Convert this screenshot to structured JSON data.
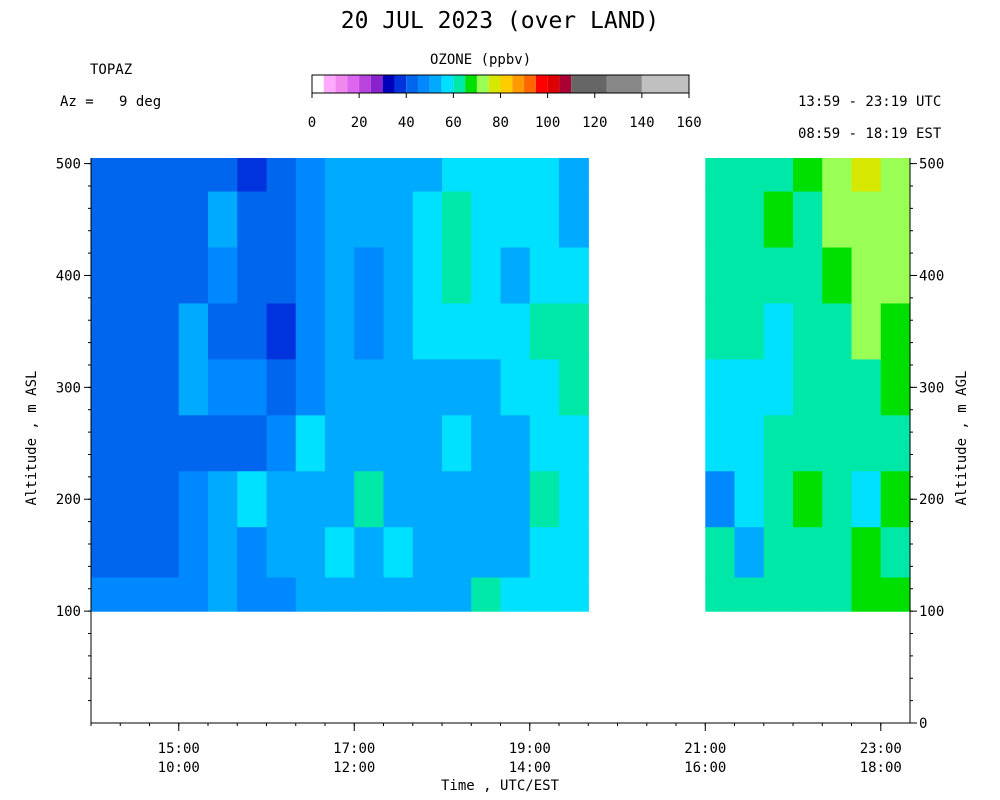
{
  "header": {
    "title": "20 JUL 2023 (over LAND)",
    "instrument": "TOPAZ",
    "azimuth": "Az =   9 deg",
    "utc_range": "13:59 - 23:19 UTC",
    "est_range": "08:59 - 18:19 EST"
  },
  "colorbar": {
    "label": "OZONE (ppbv)",
    "ticks": [
      "0",
      "20",
      "40",
      "60",
      "80",
      "100",
      "120",
      "140",
      "160"
    ],
    "range": [
      0,
      160
    ],
    "bins": [
      {
        "from": 0,
        "to": 5,
        "color": "#ffffff"
      },
      {
        "from": 5,
        "to": 10,
        "color": "#ffaaff"
      },
      {
        "from": 10,
        "to": 15,
        "color": "#f088f0"
      },
      {
        "from": 15,
        "to": 20,
        "color": "#dd66ee"
      },
      {
        "from": 20,
        "to": 25,
        "color": "#b844dd"
      },
      {
        "from": 25,
        "to": 30,
        "color": "#8822cc"
      },
      {
        "from": 30,
        "to": 35,
        "color": "#0000bb"
      },
      {
        "from": 35,
        "to": 40,
        "color": "#0033dd"
      },
      {
        "from": 40,
        "to": 45,
        "color": "#0066ee"
      },
      {
        "from": 45,
        "to": 50,
        "color": "#0088ff"
      },
      {
        "from": 50,
        "to": 55,
        "color": "#00aaff"
      },
      {
        "from": 55,
        "to": 60,
        "color": "#00e0ff"
      },
      {
        "from": 60,
        "to": 65,
        "color": "#00e8a8"
      },
      {
        "from": 65,
        "to": 70,
        "color": "#00e000"
      },
      {
        "from": 70,
        "to": 75,
        "color": "#99ff55"
      },
      {
        "from": 75,
        "to": 80,
        "color": "#d6e800"
      },
      {
        "from": 80,
        "to": 85,
        "color": "#ffcc00"
      },
      {
        "from": 85,
        "to": 90,
        "color": "#ff9900"
      },
      {
        "from": 90,
        "to": 95,
        "color": "#ff6600"
      },
      {
        "from": 95,
        "to": 100,
        "color": "#ff0000"
      },
      {
        "from": 100,
        "to": 105,
        "color": "#dd0000"
      },
      {
        "from": 105,
        "to": 110,
        "color": "#aa0033"
      },
      {
        "from": 110,
        "to": 125,
        "color": "#666666"
      },
      {
        "from": 125,
        "to": 140,
        "color": "#888888"
      },
      {
        "from": 140,
        "to": 160,
        "color": "#c0c0c0"
      }
    ]
  },
  "chart_data": {
    "type": "heatmap",
    "title": "20 JUL 2023 (over LAND)",
    "xlabel": "Time , UTC/EST",
    "ylabel_left": "Altitude , m ASL",
    "ylabel_right": "Altitude , m AGL",
    "x_ticks_utc": [
      "15:00",
      "17:00",
      "19:00",
      "21:00",
      "23:00"
    ],
    "x_ticks_est": [
      "10:00",
      "12:00",
      "14:00",
      "16:00",
      "18:00"
    ],
    "x_tick_hours": [
      15,
      17,
      19,
      21,
      23
    ],
    "x_range_hours": [
      14.0,
      23.333
    ],
    "y_left_ticks": [
      "100",
      "200",
      "300",
      "400",
      "500"
    ],
    "y_left_tick_values": [
      100,
      200,
      300,
      400,
      500
    ],
    "y_right_ticks": [
      "0",
      "100",
      "200",
      "300",
      "400",
      "500"
    ],
    "y_right_tick_values": [
      0,
      100,
      200,
      300,
      400,
      500
    ],
    "y_range_m_asl": [
      0,
      505
    ],
    "y_data_range_m_asl": [
      100,
      505
    ],
    "profile_times_utc": [
      14.0,
      14.333,
      14.667,
      15.0,
      15.333,
      15.667,
      16.0,
      16.333,
      16.667,
      17.0,
      17.333,
      17.667,
      18.0,
      18.333,
      18.667,
      19.0,
      19.333,
      21.0,
      21.333,
      21.667,
      22.0,
      22.333,
      22.667,
      23.0
    ],
    "gap_utc": [
      19.667,
      21.0
    ],
    "altitude_levels_m_asl": [
      500,
      450,
      400,
      350,
      300,
      250,
      200,
      150,
      110
    ],
    "ozone_ppbv": [
      [
        44,
        44,
        44,
        42,
        42,
        38,
        42,
        46,
        50,
        52,
        52,
        54,
        58,
        58,
        56,
        58,
        50,
        60,
        60,
        64,
        68,
        70,
        75,
        70
      ],
      [
        44,
        44,
        44,
        44,
        50,
        40,
        42,
        48,
        50,
        52,
        54,
        58,
        62,
        58,
        56,
        58,
        52,
        60,
        60,
        68,
        62,
        70,
        72,
        70
      ],
      [
        44,
        40,
        44,
        44,
        48,
        44,
        40,
        46,
        50,
        46,
        54,
        58,
        62,
        56,
        52,
        58,
        56,
        60,
        60,
        64,
        62,
        68,
        72,
        70
      ],
      [
        44,
        42,
        44,
        50,
        44,
        44,
        38,
        48,
        50,
        48,
        54,
        56,
        58,
        56,
        56,
        60,
        62,
        60,
        62,
        58,
        62,
        64,
        74,
        68
      ],
      [
        42,
        44,
        44,
        50,
        48,
        48,
        44,
        48,
        52,
        50,
        52,
        50,
        52,
        50,
        56,
        58,
        60,
        58,
        56,
        58,
        62,
        64,
        60,
        68
      ],
      [
        42,
        44,
        44,
        44,
        44,
        42,
        46,
        58,
        54,
        50,
        52,
        52,
        56,
        54,
        52,
        58,
        58,
        58,
        58,
        62,
        62,
        62,
        62,
        62
      ],
      [
        40,
        44,
        44,
        48,
        50,
        56,
        52,
        54,
        54,
        60,
        54,
        52,
        54,
        52,
        52,
        60,
        58,
        46,
        58,
        62,
        68,
        62,
        56,
        66
      ],
      [
        40,
        42,
        44,
        46,
        50,
        48,
        50,
        54,
        56,
        54,
        56,
        50,
        52,
        50,
        52,
        58,
        56,
        64,
        50,
        60,
        62,
        62,
        66,
        62
      ],
      [
        48,
        48,
        46,
        48,
        50,
        48,
        48,
        50,
        54,
        54,
        54,
        52,
        54,
        60,
        56,
        56,
        56,
        62,
        60,
        60,
        62,
        62,
        66,
        68
      ]
    ],
    "grid": false,
    "legend": "colorbar top-center"
  }
}
